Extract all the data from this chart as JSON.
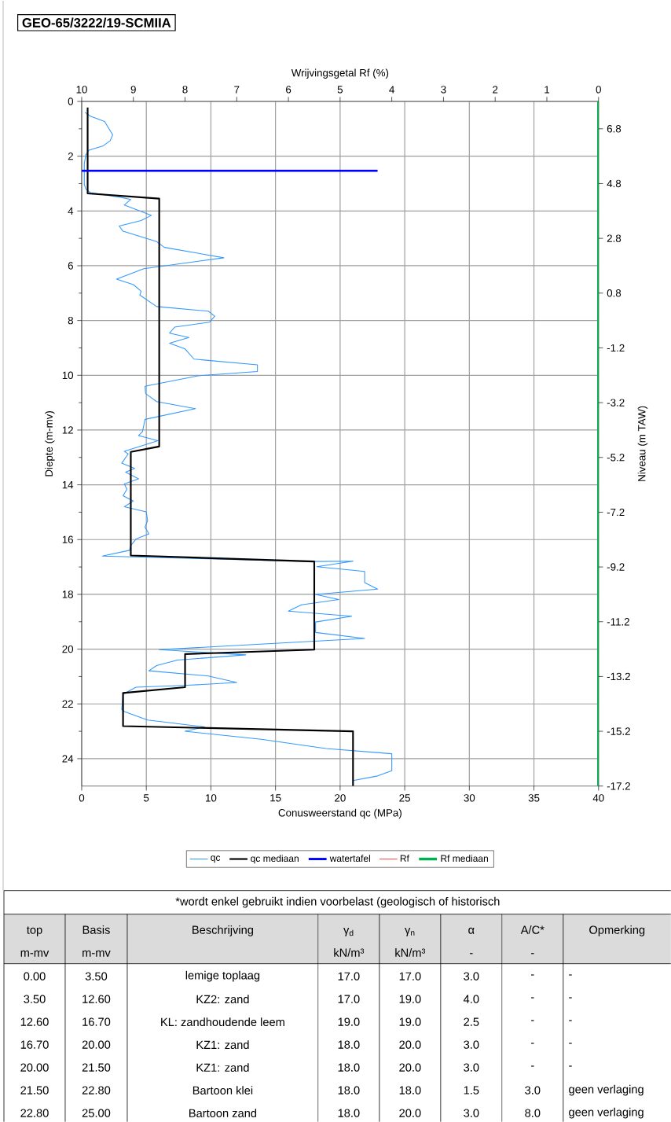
{
  "chart_data": {
    "type": "line",
    "title": "GEO-65/3222/19-SCMIIA",
    "xlabel": "Conusweerstand qc (MPa)",
    "x2label": "Wrijvingsgetal Rf (%)",
    "ylabel": "Diepte (m-mv)",
    "y2label": "Niveau (m TAW)",
    "xlim": [
      0,
      40
    ],
    "xticks": [
      0,
      5,
      10,
      15,
      20,
      25,
      30,
      35,
      40
    ],
    "x2lim": [
      10,
      0
    ],
    "x2ticks": [
      10,
      9,
      8,
      7,
      6,
      5,
      4,
      3,
      2,
      1,
      0
    ],
    "ylim": [
      25,
      0
    ],
    "yticks": [
      0,
      2,
      4,
      6,
      8,
      10,
      12,
      14,
      16,
      18,
      20,
      22,
      24
    ],
    "y2lim": [
      -17.2,
      7.8
    ],
    "y2ticks": [
      6.8,
      4.8,
      2.8,
      0.8,
      -1.2,
      -3.2,
      -5.2,
      -7.2,
      -9.2,
      -11.2,
      -13.2,
      -15.2,
      -17.2
    ],
    "grid": true,
    "legend": "bottom",
    "series": [
      {
        "name": "qc",
        "color": "#3399ff",
        "x": [
          0.26,
          0.67,
          1.77,
          2.4,
          2.2,
          1.67,
          0.56,
          0.32,
          0.2,
          0.2,
          0.32,
          0.67,
          3.0,
          3.8,
          3.3,
          5.4,
          4.6,
          2.9,
          3.2,
          5.8,
          6.4,
          11.0,
          4.8,
          2.7,
          4.0,
          4.6,
          4.5,
          5.8,
          9.8,
          10.3,
          9.9,
          7.2,
          6.8,
          8.3,
          6.8,
          8.0,
          8.7,
          13.6,
          13.6,
          9.0,
          4.9,
          4.95,
          5.8,
          8.8,
          4.9,
          4.7,
          4.4,
          5.9,
          3.3,
          3.6,
          3.1,
          4.1,
          3.4,
          4.4,
          3.3,
          3.5,
          3.2,
          4.0,
          3.3,
          5.0,
          5.1,
          4.9,
          5.2,
          4.2,
          3.8,
          3.7,
          1.6,
          18.0,
          21.0,
          18.2,
          21.9,
          21.9,
          22.9,
          18.1,
          19.9,
          17.0,
          16.0,
          20.9,
          18.1,
          18.1,
          21.9,
          6.0,
          12.7,
          7.4,
          5.8,
          5.2,
          9.8,
          12.0,
          8.2,
          4.2,
          3.2,
          3.1,
          3.3,
          5.1,
          9.5,
          8.0,
          13.9,
          18.9,
          24.0,
          24.0,
          22.9,
          21.0
        ],
        "values": [
          0.4,
          0.54,
          0.73,
          1.22,
          1.44,
          1.62,
          1.78,
          1.95,
          2.28,
          3.03,
          3.2,
          3.33,
          3.5,
          3.58,
          3.78,
          4.16,
          4.35,
          4.55,
          4.74,
          5.12,
          5.33,
          5.71,
          6.11,
          6.49,
          6.69,
          6.93,
          7.07,
          7.49,
          7.66,
          7.84,
          8.06,
          8.24,
          8.46,
          8.62,
          8.83,
          9.04,
          9.41,
          9.62,
          9.86,
          10.02,
          10.4,
          10.67,
          10.96,
          11.22,
          11.61,
          12.06,
          12.2,
          12.39,
          12.78,
          12.87,
          13.21,
          13.4,
          13.54,
          13.78,
          13.97,
          14.16,
          14.4,
          14.59,
          14.8,
          14.99,
          15.31,
          15.55,
          15.79,
          15.98,
          16.22,
          16.39,
          16.6,
          16.8,
          16.79,
          16.99,
          17.16,
          17.57,
          17.81,
          18.0,
          18.19,
          18.38,
          18.61,
          18.8,
          19.01,
          19.39,
          19.61,
          20.02,
          20.21,
          20.4,
          20.6,
          20.79,
          20.98,
          21.22,
          21.32,
          21.39,
          21.65,
          22.2,
          22.28,
          22.59,
          22.84,
          23.0,
          23.29,
          23.63,
          23.82,
          24.44,
          24.63,
          24.8
        ]
      },
      {
        "name": "qc mediaan",
        "color": "#000000",
        "x": [
          0.46,
          0.46,
          6.0,
          6.0,
          3.8,
          3.8,
          18.0,
          18.0,
          8.0,
          8.0,
          3.2,
          3.2,
          21.0,
          21.0
        ],
        "values": [
          0.22,
          3.36,
          3.55,
          12.6,
          12.8,
          16.58,
          16.8,
          20.02,
          20.18,
          21.39,
          21.6,
          22.81,
          23.0,
          25.0
        ]
      },
      {
        "name": "watertafel",
        "color": "#0000ff",
        "x": [
          0,
          22.9
        ],
        "values": [
          2.53,
          2.53
        ]
      },
      {
        "name": "Rf",
        "color": "#ff5050",
        "axis": "x2"
      },
      {
        "name": "Rf mediaan",
        "color": "#00b050",
        "axis": "x2",
        "x": [
          0,
          0
        ],
        "values": [
          0,
          25
        ]
      }
    ],
    "annotations": [
      "*wordt enkel gebruikt indien voorbelast (geologisch of historisch",
      "top",
      "Basis",
      "Beschrijving",
      "γ$_{d}$",
      "γ$_{n}$",
      "α",
      "A/C*",
      "Opmerking",
      "m-mv",
      "m-mv",
      "kN/m³",
      "kN/m³",
      "-",
      "-",
      "0.00",
      "3.50",
      "lemige toplaag",
      "17.0",
      "17.0",
      "3.0",
      "-",
      "-",
      "3.50",
      "12.60",
      "KZ2: zand",
      "17.0",
      "19.0",
      "4.0",
      "-",
      "-",
      "12.60",
      "16.70",
      "KL: zandhoudende leem",
      "19.0",
      "19.0",
      "2.5",
      "-",
      "-",
      "16.70",
      "20.00",
      "KZ1: zand",
      "18.0",
      "20.0",
      "3.0",
      "-",
      "-",
      "20.00",
      "21.50",
      "KZ1: zand",
      "18.0",
      "20.0",
      "3.0",
      "-",
      "-",
      "21.50",
      "22.80",
      "Bartoon klei",
      "18.0",
      "18.0",
      "1.5",
      "3.0",
      "geen verlaging",
      "22.80",
      "25.00",
      "Bartoon zand",
      "18.0",
      "20.0",
      "3.0",
      "8.0",
      "geen verlaging"
    ]
  }
}
